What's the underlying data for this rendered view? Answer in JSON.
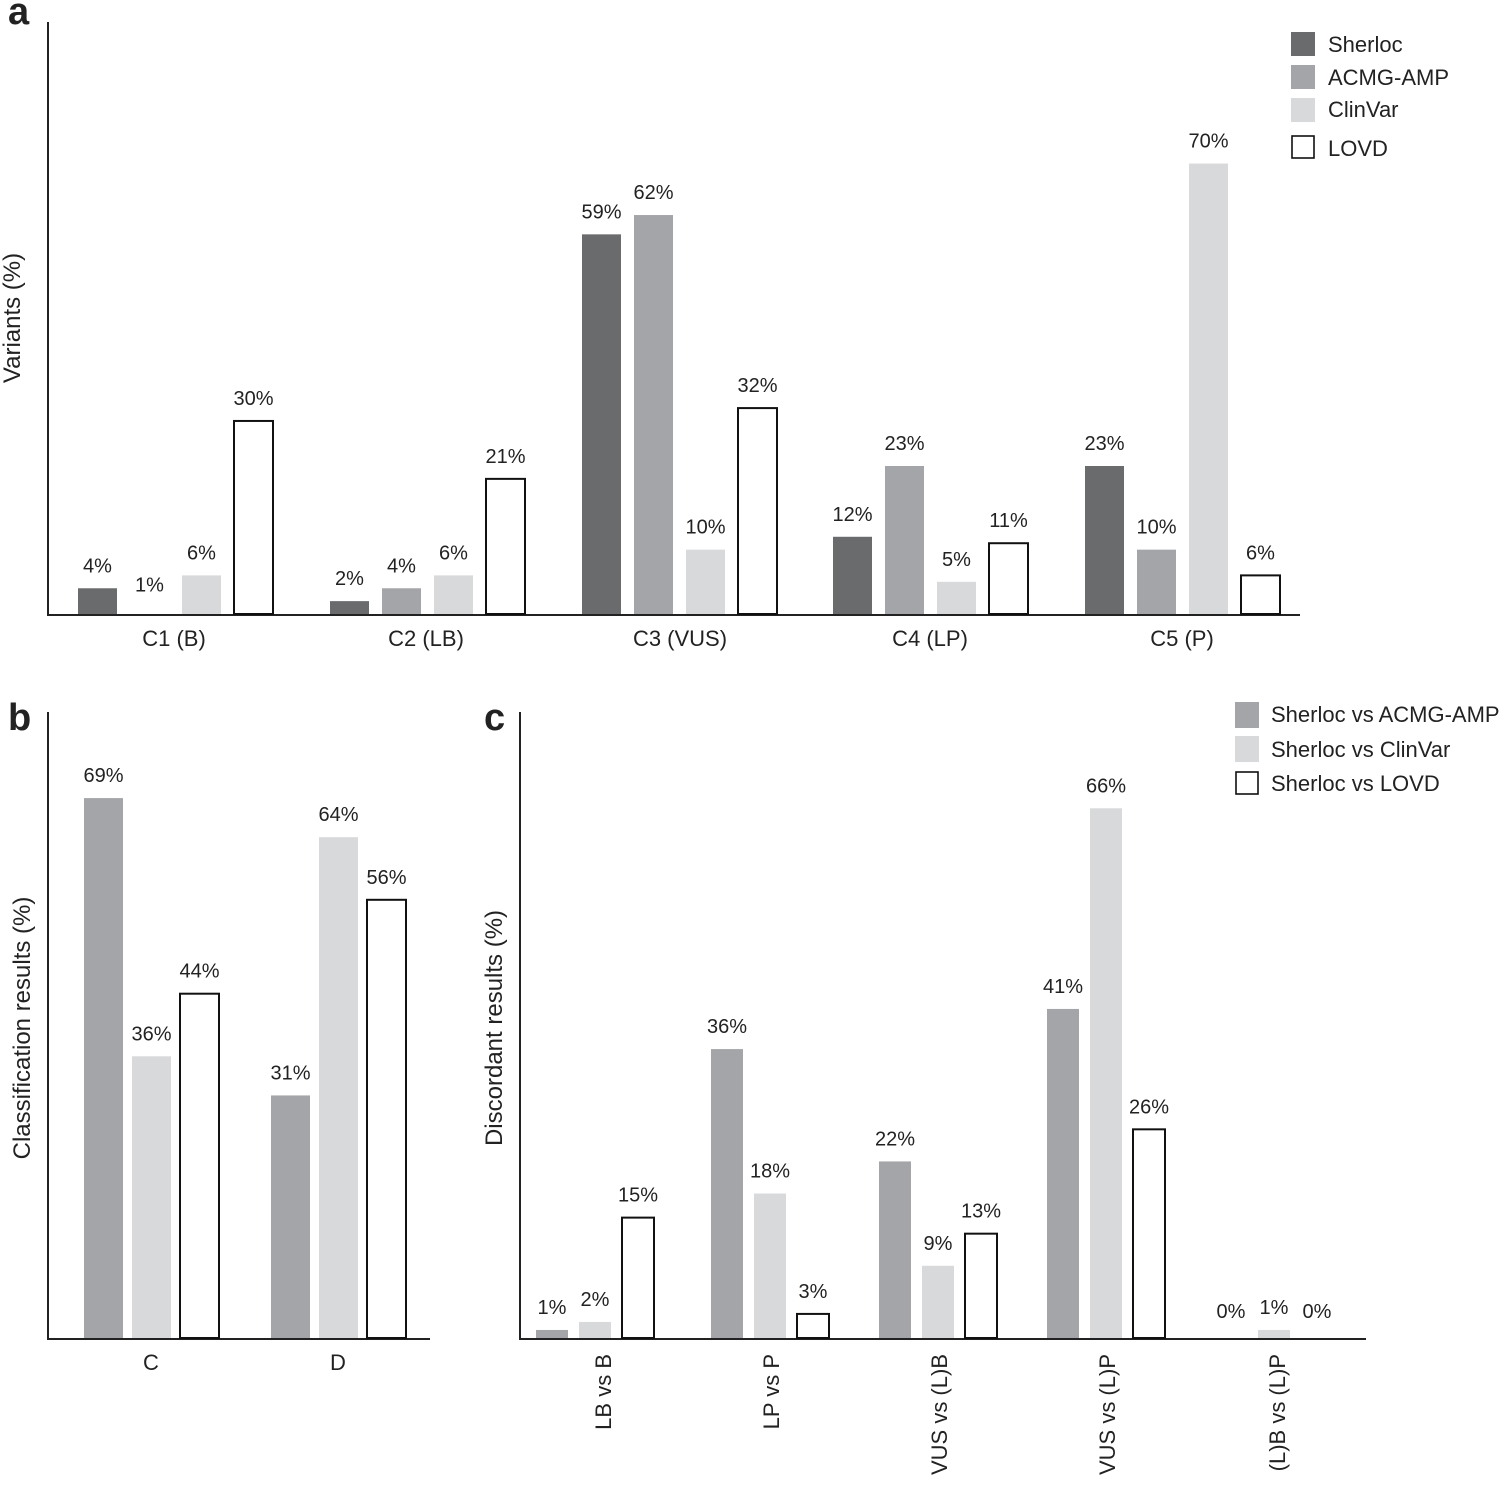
{
  "colors": {
    "dark": "#6a6b6d",
    "mid": "#a4a5a8",
    "light": "#d8d9db",
    "open": "#ffffff",
    "stroke": "#111111"
  },
  "chart_data": [
    {
      "panel": "a",
      "type": "bar",
      "ylabel": "Variants (%)",
      "ylim": [
        0,
        92
      ],
      "categories": [
        "C1 (B)",
        "C2 (LB)",
        "C3 (VUS)",
        "C4 (LP)",
        "C5 (P)"
      ],
      "series": [
        {
          "name": "Sherloc",
          "color": "dark",
          "values": [
            4,
            2,
            59,
            12,
            23
          ],
          "labels": [
            "4%",
            "2%",
            "59%",
            "12%",
            "23%"
          ]
        },
        {
          "name": "ACMG-AMP",
          "color": "mid",
          "values": [
            1,
            4,
            62,
            23,
            10
          ],
          "labels": [
            "1%",
            "4%",
            "62%",
            "23%",
            "10%"
          ]
        },
        {
          "name": "ClinVar",
          "color": "light",
          "values": [
            6,
            6,
            10,
            5,
            70
          ],
          "labels": [
            "6%",
            "6%",
            "10%",
            "5%",
            "70%"
          ]
        },
        {
          "name": "LOVD",
          "color": "open",
          "values": [
            30,
            21,
            32,
            11,
            6
          ],
          "labels": [
            "30%",
            "21%",
            "32%",
            "11%",
            "6%"
          ]
        }
      ],
      "hidden_bars": [
        [
          1,
          0
        ]
      ]
    },
    {
      "panel": "b",
      "type": "bar",
      "ylabel": "Classification results (%)",
      "ylim": [
        0,
        80
      ],
      "categories": [
        "C",
        "D"
      ],
      "series": [
        {
          "name": "Sherloc vs ACMG-AMP",
          "color": "mid",
          "values": [
            69,
            31
          ],
          "labels": [
            "69%",
            "31%"
          ]
        },
        {
          "name": "Sherloc vs ClinVar",
          "color": "light",
          "values": [
            36,
            64
          ],
          "labels": [
            "36%",
            "64%"
          ]
        },
        {
          "name": "Sherloc vs LOVD",
          "color": "open",
          "values": [
            44,
            56
          ],
          "labels": [
            "44%",
            "56%"
          ]
        }
      ],
      "hidden_bars": []
    },
    {
      "panel": "c",
      "type": "bar",
      "ylabel": "Discordant  results (%)",
      "ylim": [
        0,
        78
      ],
      "categories": [
        "LB vs B",
        "LP vs P",
        "VUS vs (L)B",
        "VUS vs (L)P",
        "(L)B vs (L)P"
      ],
      "series": [
        {
          "name": "Sherloc vs ACMG-AMP",
          "color": "mid",
          "values": [
            1,
            36,
            22,
            41,
            0
          ],
          "labels": [
            "1%",
            "36%",
            "22%",
            "41%",
            "0%"
          ]
        },
        {
          "name": "Sherloc vs ClinVar",
          "color": "light",
          "values": [
            2,
            18,
            9,
            66,
            1
          ],
          "labels": [
            "2%",
            "18%",
            "9%",
            "66%",
            "1%"
          ]
        },
        {
          "name": "Sherloc vs LOVD",
          "color": "open",
          "values": [
            15,
            3,
            13,
            26,
            0
          ],
          "labels": [
            "15%",
            "3%",
            "13%",
            "26%",
            "0%"
          ]
        }
      ],
      "hidden_bars": [
        [
          0,
          4
        ],
        [
          2,
          4
        ]
      ]
    }
  ]
}
